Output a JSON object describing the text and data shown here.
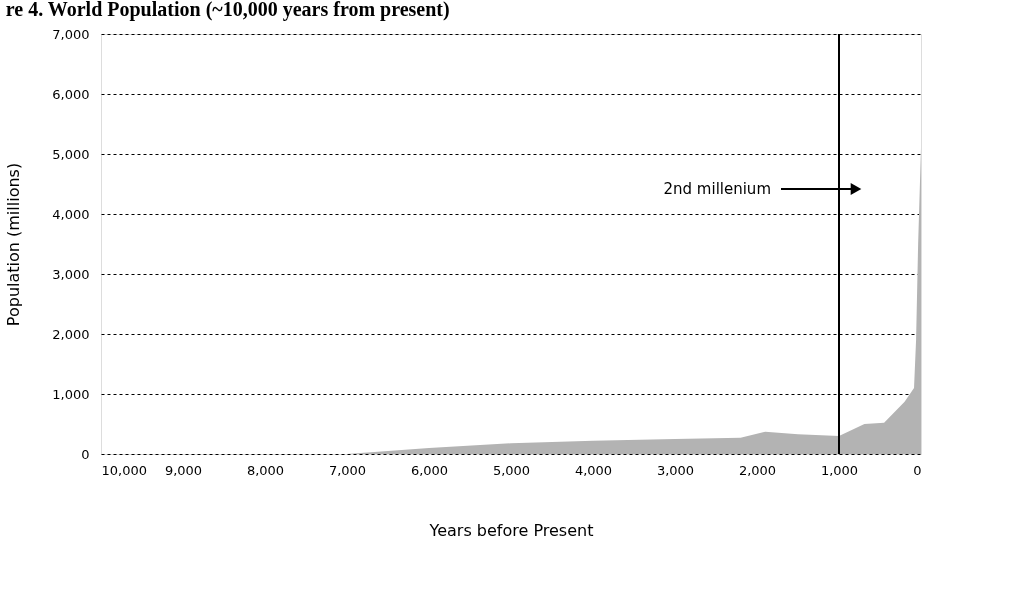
{
  "chart_data": {
    "type": "area",
    "title": "re 4. World Population (~10,000 years from present)",
    "xlabel": "Years before Present",
    "ylabel": "Population (millions)",
    "x": [
      10000,
      7000,
      6000,
      5000,
      4000,
      3000,
      2200,
      1900,
      1500,
      1000,
      690,
      450,
      200,
      85,
      60,
      35,
      0
    ],
    "series": [
      {
        "color": "#b3b3b3",
        "values": [
          0,
          0,
          100,
          180,
          220,
          250,
          270,
          370,
          330,
          300,
          500,
          520,
          870,
          1100,
          1900,
          3500,
          5100
        ]
      }
    ],
    "xlim": [
      10000,
      0
    ],
    "xticks": [
      {
        "value": 10000,
        "label": "10,000"
      },
      {
        "value": 9000,
        "label": "9,000"
      },
      {
        "value": 8000,
        "label": "8,000"
      },
      {
        "value": 7000,
        "label": "7,000"
      },
      {
        "value": 6000,
        "label": "6,000"
      },
      {
        "value": 5000,
        "label": "5,000"
      },
      {
        "value": 4000,
        "label": "4,000"
      },
      {
        "value": 3000,
        "label": "3,000"
      },
      {
        "value": 2000,
        "label": "2,000"
      },
      {
        "value": 1000,
        "label": "1,000"
      },
      0
    ],
    "ylim": [
      0,
      7000
    ],
    "yticks": [
      0,
      {
        "value": 1000,
        "label": "1,000"
      },
      {
        "value": 2000,
        "label": "2,000"
      },
      {
        "value": 3000,
        "label": "3,000"
      },
      {
        "value": 4000,
        "label": "4,000"
      },
      {
        "value": 5000,
        "label": "5,000"
      },
      {
        "value": 6000,
        "label": "6,000"
      },
      {
        "value": 7000,
        "label": "7,000"
      }
    ],
    "grid": "y",
    "ref_lines": [
      {
        "axis": "x",
        "value": 1000,
        "color": "#000000"
      }
    ],
    "annotations": [
      "2nd millenium"
    ]
  }
}
